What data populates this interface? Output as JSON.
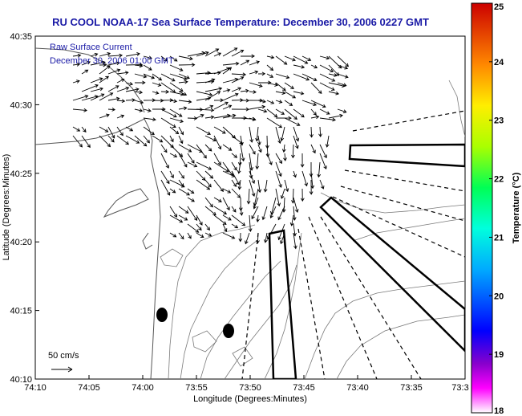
{
  "title": "RU COOL  NOAA-17  Sea Surface Temperature:  December 30, 2006 0227 GMT",
  "legend_text": {
    "line1": "Raw Surface Current",
    "line2": "December 30, 2006 01:00 GMT"
  },
  "scale_label": "50 cm/s",
  "axes": {
    "x_label": "Longitude (Degrees:Minutes)",
    "y_label": "Latitude (Degrees:Minutes)",
    "x_ticks": [
      "74:10",
      "74:05",
      "74:00",
      "73:55",
      "73:50",
      "73:45",
      "73:40",
      "73:35",
      "73:3"
    ],
    "y_ticks": [
      "40:35",
      "40:30",
      "40:25",
      "40:20",
      "40:15",
      "40:10"
    ]
  },
  "colorbar": {
    "label": "Temperature (°C)",
    "ticks": [
      "25",
      "24",
      "23",
      "22",
      "21",
      "20",
      "19",
      "18"
    ],
    "min": 18,
    "max": 25
  },
  "colors": {
    "title_blue": "#1a1aa6",
    "contour_gray": "#7a7a7a"
  }
}
